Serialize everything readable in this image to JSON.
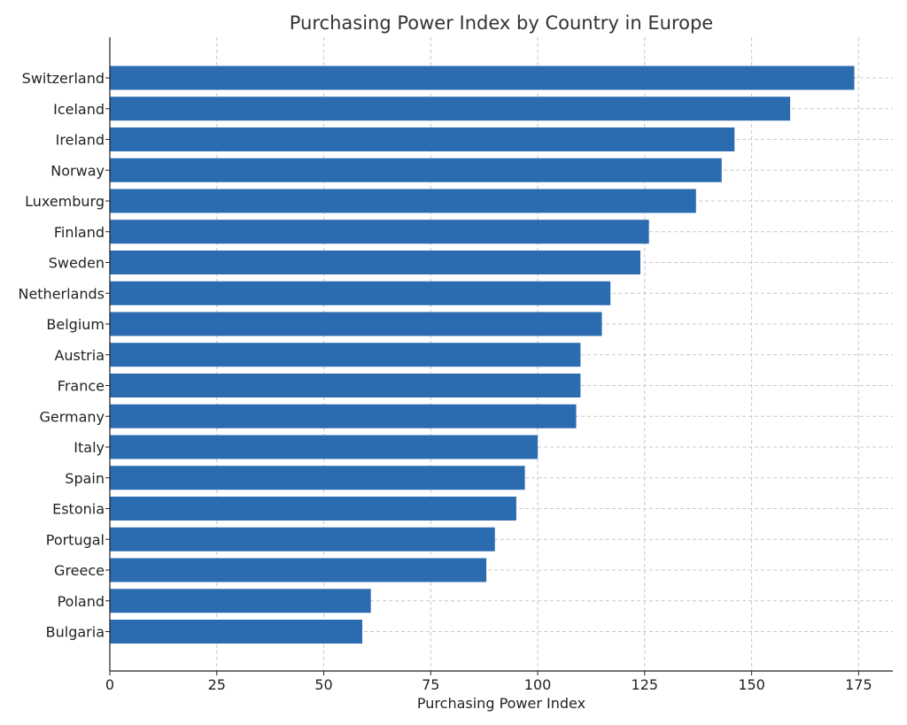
{
  "chart_data": {
    "type": "bar",
    "orientation": "horizontal",
    "title": "Purchasing Power Index by Country in Europe",
    "xlabel": "Purchasing Power Index",
    "ylabel": "",
    "xlim": [
      0,
      183
    ],
    "xticks": [
      0,
      25,
      50,
      75,
      100,
      125,
      150,
      175
    ],
    "grid": true,
    "bar_color": "#2b6cb0",
    "categories": [
      "Switzerland",
      "Iceland",
      "Ireland",
      "Norway",
      "Luxemburg",
      "Finland",
      "Sweden",
      "Netherlands",
      "Belgium",
      "Austria",
      "France",
      "Germany",
      "Italy",
      "Spain",
      "Estonia",
      "Portugal",
      "Greece",
      "Poland",
      "Bulgaria"
    ],
    "values": [
      174,
      159,
      146,
      143,
      137,
      126,
      124,
      117,
      115,
      110,
      110,
      109,
      100,
      97,
      95,
      90,
      88,
      61,
      59
    ]
  }
}
